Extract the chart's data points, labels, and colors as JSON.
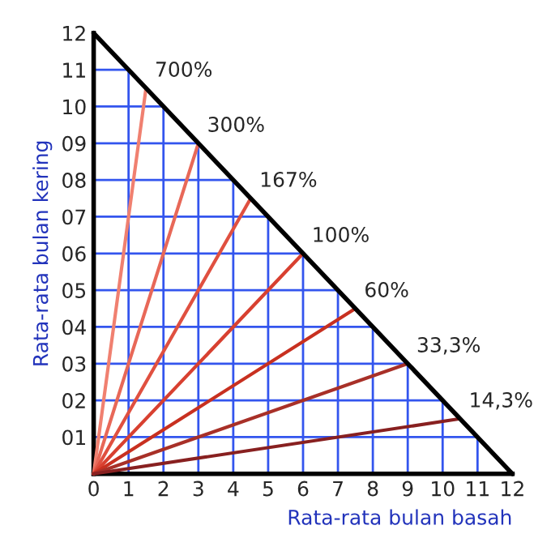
{
  "chart_data": {
    "type": "line",
    "xlabel": "Rata-rata bulan basah",
    "ylabel": "Rata-rata bulan kering",
    "xlim": [
      0,
      12
    ],
    "ylim": [
      0,
      12
    ],
    "xticks": [
      0,
      1,
      2,
      3,
      4,
      5,
      6,
      7,
      8,
      9,
      10,
      11,
      12
    ],
    "yticks": [
      {
        "value": 1,
        "label": "01"
      },
      {
        "value": 2,
        "label": "02"
      },
      {
        "value": 3,
        "label": "03"
      },
      {
        "value": 4,
        "label": "04"
      },
      {
        "value": 5,
        "label": "05"
      },
      {
        "value": 6,
        "label": "06"
      },
      {
        "value": 7,
        "label": "07"
      },
      {
        "value": 8,
        "label": "08"
      },
      {
        "value": 9,
        "label": "09"
      },
      {
        "value": 10,
        "label": "10"
      },
      {
        "value": 11,
        "label": "11"
      },
      {
        "value": 12,
        "label": "12"
      }
    ],
    "grid": true,
    "marker": "none",
    "line_style": "solid",
    "series": [
      {
        "name": "700%",
        "color": "#f08070",
        "x": [
          0,
          1.5
        ],
        "values": [
          0,
          10.5
        ]
      },
      {
        "name": "300%",
        "color": "#e86858",
        "x": [
          0,
          3
        ],
        "values": [
          0,
          9
        ]
      },
      {
        "name": "167%",
        "color": "#e05040",
        "x": [
          0,
          4.5
        ],
        "values": [
          0,
          7.5
        ]
      },
      {
        "name": "100%",
        "color": "#d84030",
        "x": [
          0,
          6
        ],
        "values": [
          0,
          6
        ]
      },
      {
        "name": "60%",
        "color": "#c83020",
        "x": [
          0,
          7.5
        ],
        "values": [
          0,
          4.5
        ]
      },
      {
        "name": "33,3%",
        "color": "#a83028",
        "x": [
          0,
          9
        ],
        "values": [
          0,
          3
        ]
      },
      {
        "name": "14,3%",
        "color": "#882020",
        "x": [
          0,
          10.5
        ],
        "values": [
          0,
          1.5
        ]
      },
      {
        "color": "#000000",
        "x": [
          0,
          12
        ],
        "values": [
          12,
          0
        ]
      }
    ]
  }
}
